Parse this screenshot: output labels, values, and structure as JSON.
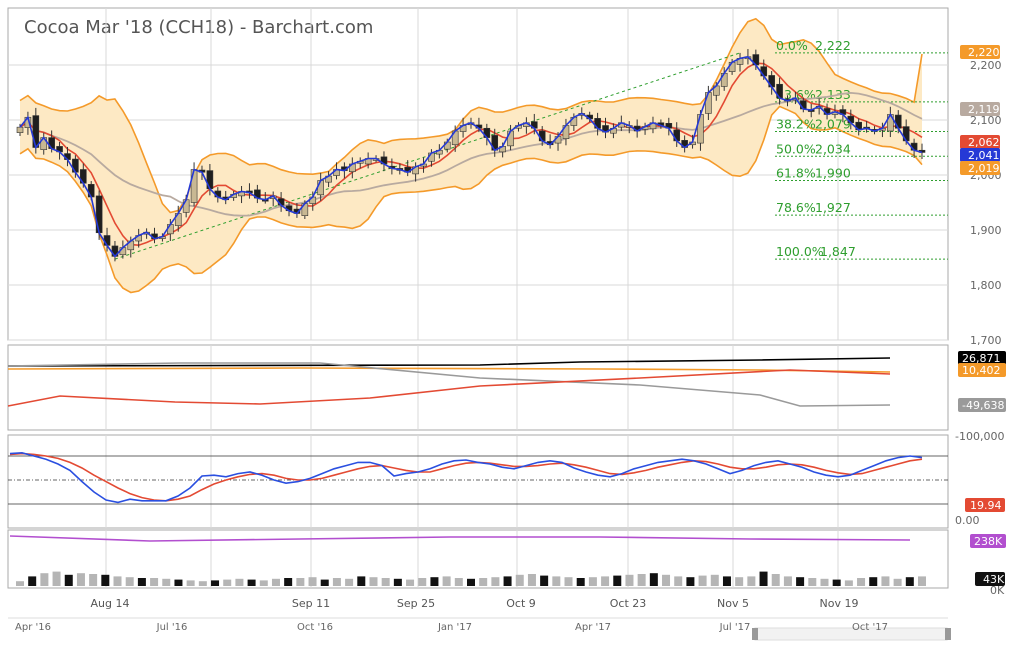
{
  "header": {
    "title": "Cocoa Mar '18 (CCH18) - Barchart.com"
  },
  "colors": {
    "band_fill": "#fde9c4",
    "band_line": "#f49a2a",
    "ma_fast": "#e34a33",
    "ma_slow": "#b8aaa0",
    "close_line": "#2539d6",
    "fib_line": "#2e9e2e",
    "up_candle": "#c8b893",
    "down_candle": "#1f1f1f",
    "stoch_k": "#2a4fe0",
    "stoch_d": "#e34a33",
    "volume_ma": "#b24fcf",
    "volume_up": "#b5b5b5",
    "volume_down": "#111111",
    "cot_black": "#000000",
    "cot_orange": "#f49a2a",
    "cot_gray": "#9a9a9a",
    "cot_red": "#e34a33"
  },
  "chart_data": {
    "type": "candlestick",
    "price_axis": {
      "ticks": [
        "2,200",
        "2,100",
        "2,000",
        "1,900",
        "1,800",
        "1,700"
      ],
      "range": [
        1700,
        2240
      ]
    },
    "x_labels": [
      "Aug 14",
      "Sep 11",
      "Sep 25",
      "Oct 9",
      "Oct 23",
      "Nov 5",
      "Nov 19"
    ],
    "closes": [
      2087,
      2105,
      2050,
      2068,
      2048,
      2042,
      2028,
      2005,
      1985,
      1960,
      1895,
      1872,
      1852,
      1868,
      1880,
      1890,
      1896,
      1884,
      1888,
      1910,
      1930,
      1955,
      2010,
      2005,
      1975,
      1960,
      1955,
      1965,
      1970,
      1968,
      1958,
      1955,
      1962,
      1945,
      1935,
      1930,
      1948,
      1960,
      1990,
      1998,
      2010,
      2008,
      2020,
      2025,
      2030,
      2030,
      2020,
      2012,
      2010,
      2005,
      2015,
      2020,
      2040,
      2045,
      2060,
      2080,
      2090,
      2095,
      2085,
      2068,
      2045,
      2052,
      2080,
      2090,
      2095,
      2085,
      2062,
      2055,
      2070,
      2090,
      2105,
      2112,
      2102,
      2085,
      2078,
      2085,
      2095,
      2090,
      2080,
      2088,
      2095,
      2090,
      2085,
      2062,
      2050,
      2060,
      2110,
      2150,
      2162,
      2185,
      2205,
      2212,
      2215,
      2200,
      2180,
      2160,
      2140,
      2135,
      2140,
      2120,
      2118,
      2125,
      2110,
      2115,
      2110,
      2095,
      2082,
      2085,
      2080,
      2085,
      2110,
      2085,
      2062,
      2045,
      2041
    ],
    "bollinger_last": {
      "upper": 2220,
      "lower": 2019
    },
    "fibonacci": [
      {
        "label": "0.0%",
        "value": "2,222"
      },
      {
        "label": "23.6%",
        "value": "2,133"
      },
      {
        "label": "38.2%",
        "value": "2,079"
      },
      {
        "label": "50.0%",
        "value": "2,034"
      },
      {
        "label": "61.8%",
        "value": "1,990"
      },
      {
        "label": "78.6%",
        "value": "1,927"
      },
      {
        "label": "100.0%",
        "value": "1,847"
      }
    ],
    "price_badges": [
      {
        "text": "2,220",
        "series": "upper band"
      },
      {
        "text": "2,119",
        "series": "slow MA"
      },
      {
        "text": "2,062",
        "series": "fast MA"
      },
      {
        "text": "2,041",
        "series": "close"
      },
      {
        "text": "2,019",
        "series": "lower band"
      }
    ],
    "cot": {
      "badges": [
        "26,871",
        "10,402",
        "-49,638"
      ],
      "axis_label": "-100,000"
    },
    "stochastic": {
      "k": [
        83,
        84,
        80,
        76,
        70,
        62,
        48,
        35,
        25,
        22,
        26,
        24,
        24,
        24,
        30,
        40,
        55,
        56,
        54,
        58,
        60,
        56,
        50,
        46,
        48,
        52,
        58,
        64,
        68,
        72,
        72,
        68,
        55,
        58,
        60,
        64,
        70,
        74,
        75,
        72,
        70,
        66,
        64,
        68,
        72,
        74,
        72,
        65,
        60,
        56,
        54,
        58,
        64,
        68,
        72,
        74,
        76,
        74,
        70,
        64,
        58,
        62,
        68,
        72,
        74,
        70,
        66,
        60,
        56,
        54,
        56,
        62,
        68,
        74,
        78,
        80,
        78
      ],
      "d": [
        82,
        83,
        82,
        80,
        77,
        72,
        65,
        56,
        48,
        40,
        33,
        28,
        25,
        24,
        26,
        30,
        38,
        45,
        50,
        54,
        57,
        58,
        56,
        52,
        50,
        50,
        52,
        56,
        60,
        64,
        67,
        68,
        65,
        62,
        60,
        60,
        64,
        68,
        71,
        72,
        71,
        69,
        67,
        67,
        68,
        70,
        71,
        69,
        66,
        62,
        58,
        57,
        59,
        62,
        66,
        69,
        72,
        74,
        73,
        70,
        66,
        64,
        64,
        66,
        69,
        70,
        69,
        66,
        62,
        59,
        57,
        58,
        62,
        66,
        70,
        74,
        76
      ],
      "badge": "19.94",
      "axis_label": "0.00"
    },
    "volume": {
      "bars": [
        0.3,
        0.6,
        0.8,
        0.9,
        0.7,
        0.8,
        0.75,
        0.7,
        0.6,
        0.55,
        0.5,
        0.5,
        0.45,
        0.4,
        0.35,
        0.3,
        0.35,
        0.4,
        0.45,
        0.4,
        0.35,
        0.45,
        0.5,
        0.5,
        0.55,
        0.4,
        0.5,
        0.45,
        0.6,
        0.55,
        0.5,
        0.45,
        0.4,
        0.5,
        0.55,
        0.6,
        0.5,
        0.45,
        0.5,
        0.55,
        0.6,
        0.7,
        0.75,
        0.65,
        0.6,
        0.55,
        0.5,
        0.55,
        0.6,
        0.65,
        0.7,
        0.75,
        0.8,
        0.7,
        0.6,
        0.55,
        0.65,
        0.7,
        0.6,
        0.55,
        0.6,
        0.9,
        0.75,
        0.6,
        0.55,
        0.5,
        0.45,
        0.4,
        0.35,
        0.5,
        0.55,
        0.6,
        0.45,
        0.55,
        0.6
      ],
      "ma_label": "238K",
      "axis_top": "43K",
      "axis_bottom": "0K"
    },
    "navigator": {
      "labels": [
        "Apr '16",
        "Jul '16",
        "Oct '16",
        "Jan '17",
        "Apr '17",
        "Jul '17",
        "Oct '17"
      ]
    }
  }
}
